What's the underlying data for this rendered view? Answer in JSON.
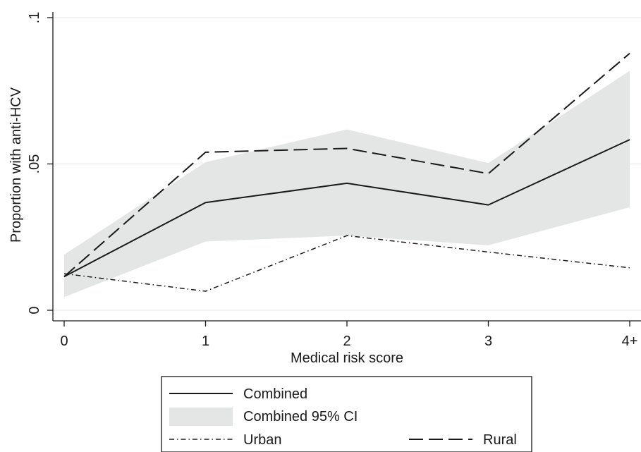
{
  "chart_data": {
    "type": "line",
    "xlabel": "Medical risk score",
    "ylabel": "Proportion with anti-HCV",
    "categories": [
      "0",
      "1",
      "2",
      "3",
      "4+"
    ],
    "y_ticks": [
      {
        "value": 0,
        "label": "0"
      },
      {
        "value": 0.05,
        "label": ".05"
      },
      {
        "value": 0.1,
        "label": ".1"
      }
    ],
    "ylim": [
      0,
      0.1
    ],
    "grid": "horizontal",
    "ci": {
      "name": "Combined 95% CI",
      "lower": [
        0.0045,
        0.0235,
        0.0255,
        0.0222,
        0.0352
      ],
      "upper": [
        0.019,
        0.0506,
        0.0618,
        0.0503,
        0.0818
      ],
      "color": "#e4e5e5"
    },
    "series": [
      {
        "name": "Combined",
        "values": [
          0.0115,
          0.0368,
          0.0434,
          0.036,
          0.0583
        ],
        "style": "solid",
        "color": "#1a1a1a"
      },
      {
        "name": "Urban",
        "values": [
          0.0125,
          0.0065,
          0.0255,
          0.0199,
          0.0145
        ],
        "style": "dash-dot",
        "color": "#1a1a1a"
      },
      {
        "name": "Rural",
        "values": [
          0.0115,
          0.054,
          0.0553,
          0.0467,
          0.0878
        ],
        "style": "long-dash",
        "color": "#1a1a1a"
      }
    ],
    "legend": {
      "position": "bottom",
      "entries": [
        "Combined",
        "Combined 95% CI",
        "Urban",
        "Rural"
      ]
    }
  }
}
